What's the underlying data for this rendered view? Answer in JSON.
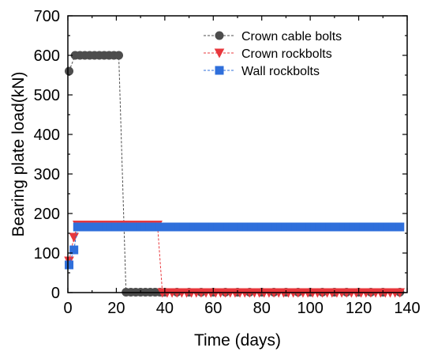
{
  "chart_data": {
    "type": "line",
    "xlabel": "Time (days)",
    "ylabel": "Bearing plate load(kN)",
    "xlim": [
      0,
      140
    ],
    "ylim": [
      0,
      700
    ],
    "x_ticks": [
      "0",
      "20",
      "40",
      "60",
      "80",
      "100",
      "120",
      "140"
    ],
    "y_ticks": [
      "0",
      "100",
      "200",
      "300",
      "400",
      "500",
      "600",
      "700"
    ],
    "grid": false,
    "legend_position": "top-right",
    "series": [
      {
        "name": "Crown cable bolts",
        "color": "#4d4d4d",
        "marker": "circle",
        "line_style": "dashed",
        "points": [
          [
            0.5,
            560
          ],
          [
            3,
            600
          ],
          [
            5,
            600
          ],
          [
            7,
            600
          ],
          [
            9,
            600
          ],
          [
            11,
            600
          ],
          [
            13,
            600
          ],
          [
            15,
            600
          ],
          [
            17,
            600
          ],
          [
            19,
            600
          ],
          [
            21,
            600
          ],
          [
            24,
            1
          ],
          [
            26,
            1
          ],
          [
            28,
            1
          ],
          [
            30,
            1
          ],
          [
            32,
            1
          ],
          [
            34,
            1
          ],
          [
            36,
            1
          ],
          [
            38,
            1
          ],
          [
            40,
            1
          ],
          [
            45,
            1
          ],
          [
            50,
            1
          ],
          [
            55,
            1
          ],
          [
            60,
            1
          ],
          [
            65,
            1
          ],
          [
            70,
            1
          ],
          [
            75,
            1
          ],
          [
            80,
            1
          ],
          [
            85,
            1
          ],
          [
            90,
            1
          ],
          [
            95,
            1
          ],
          [
            100,
            1
          ],
          [
            105,
            1
          ],
          [
            110,
            1
          ],
          [
            115,
            1
          ],
          [
            120,
            1
          ],
          [
            125,
            1
          ],
          [
            130,
            1
          ],
          [
            137,
            1
          ]
        ]
      },
      {
        "name": "Crown rockbolts",
        "color": "#e8383d",
        "marker": "triangle-down",
        "line_style": "dashed",
        "points": [
          [
            0.5,
            80
          ],
          [
            2.5,
            140
          ],
          [
            4,
            171
          ],
          [
            5,
            171
          ],
          [
            6,
            171
          ],
          [
            7,
            171
          ],
          [
            8,
            171
          ],
          [
            9,
            171
          ],
          [
            10,
            171
          ],
          [
            11,
            171
          ],
          [
            12,
            171
          ],
          [
            13,
            171
          ],
          [
            14,
            171
          ],
          [
            15,
            171
          ],
          [
            16,
            171
          ],
          [
            17,
            171
          ],
          [
            18,
            171
          ],
          [
            19,
            171
          ],
          [
            20,
            171
          ],
          [
            21,
            171
          ],
          [
            22,
            171
          ],
          [
            23,
            171
          ],
          [
            24,
            171
          ],
          [
            25,
            171
          ],
          [
            26,
            171
          ],
          [
            27,
            171
          ],
          [
            28,
            171
          ],
          [
            29,
            171
          ],
          [
            30,
            171
          ],
          [
            31,
            171
          ],
          [
            32,
            171
          ],
          [
            33,
            171
          ],
          [
            34,
            171
          ],
          [
            35,
            171
          ],
          [
            36,
            171
          ],
          [
            37,
            171
          ],
          [
            39,
            0
          ],
          [
            41,
            0
          ],
          [
            43,
            0
          ],
          [
            45,
            0
          ],
          [
            47,
            0
          ],
          [
            49,
            0
          ],
          [
            51,
            0
          ],
          [
            53,
            0
          ],
          [
            55,
            0
          ],
          [
            57,
            0
          ],
          [
            59,
            0
          ],
          [
            61,
            0
          ],
          [
            63,
            0
          ],
          [
            65,
            0
          ],
          [
            67,
            0
          ],
          [
            69,
            0
          ],
          [
            71,
            0
          ],
          [
            73,
            0
          ],
          [
            75,
            0
          ],
          [
            77,
            0
          ],
          [
            79,
            0
          ],
          [
            81,
            0
          ],
          [
            83,
            0
          ],
          [
            85,
            0
          ],
          [
            87,
            0
          ],
          [
            89,
            0
          ],
          [
            91,
            0
          ],
          [
            93,
            0
          ],
          [
            95,
            0
          ],
          [
            97,
            0
          ],
          [
            99,
            0
          ],
          [
            101,
            0
          ],
          [
            103,
            0
          ],
          [
            105,
            0
          ],
          [
            107,
            0
          ],
          [
            109,
            0
          ],
          [
            111,
            0
          ],
          [
            113,
            0
          ],
          [
            115,
            0
          ],
          [
            117,
            0
          ],
          [
            119,
            0
          ],
          [
            121,
            0
          ],
          [
            123,
            0
          ],
          [
            125,
            0
          ],
          [
            127,
            0
          ],
          [
            129,
            0
          ],
          [
            131,
            0
          ],
          [
            133,
            0
          ],
          [
            135,
            0
          ],
          [
            137,
            0
          ]
        ]
      },
      {
        "name": "Wall rockbolts",
        "color": "#2f6fdb",
        "marker": "square",
        "line_style": "dashed",
        "points": [
          [
            0.5,
            70
          ],
          [
            2.5,
            108
          ],
          [
            4,
            166
          ],
          [
            6,
            166
          ],
          [
            8,
            166
          ],
          [
            10,
            166
          ],
          [
            12,
            166
          ],
          [
            14,
            166
          ],
          [
            16,
            166
          ],
          [
            18,
            166
          ],
          [
            20,
            166
          ],
          [
            22,
            166
          ],
          [
            24,
            166
          ],
          [
            26,
            166
          ],
          [
            28,
            166
          ],
          [
            30,
            166
          ],
          [
            32,
            166
          ],
          [
            34,
            166
          ],
          [
            36,
            166
          ],
          [
            38,
            166
          ],
          [
            40,
            166
          ],
          [
            42,
            166
          ],
          [
            44,
            166
          ],
          [
            46,
            166
          ],
          [
            48,
            166
          ],
          [
            50,
            166
          ],
          [
            52,
            166
          ],
          [
            54,
            166
          ],
          [
            56,
            166
          ],
          [
            58,
            166
          ],
          [
            60,
            166
          ],
          [
            62,
            166
          ],
          [
            64,
            166
          ],
          [
            66,
            166
          ],
          [
            68,
            166
          ],
          [
            70,
            166
          ],
          [
            72,
            166
          ],
          [
            74,
            166
          ],
          [
            76,
            166
          ],
          [
            78,
            166
          ],
          [
            80,
            166
          ],
          [
            82,
            166
          ],
          [
            84,
            166
          ],
          [
            86,
            166
          ],
          [
            88,
            166
          ],
          [
            90,
            166
          ],
          [
            92,
            166
          ],
          [
            94,
            166
          ],
          [
            96,
            166
          ],
          [
            98,
            166
          ],
          [
            100,
            166
          ],
          [
            102,
            166
          ],
          [
            104,
            166
          ],
          [
            106,
            166
          ],
          [
            108,
            166
          ],
          [
            110,
            166
          ],
          [
            112,
            166
          ],
          [
            114,
            166
          ],
          [
            116,
            166
          ],
          [
            118,
            166
          ],
          [
            120,
            166
          ],
          [
            122,
            166
          ],
          [
            124,
            166
          ],
          [
            126,
            166
          ],
          [
            128,
            166
          ],
          [
            130,
            166
          ],
          [
            132,
            166
          ],
          [
            134,
            166
          ],
          [
            137,
            166
          ]
        ]
      }
    ]
  }
}
